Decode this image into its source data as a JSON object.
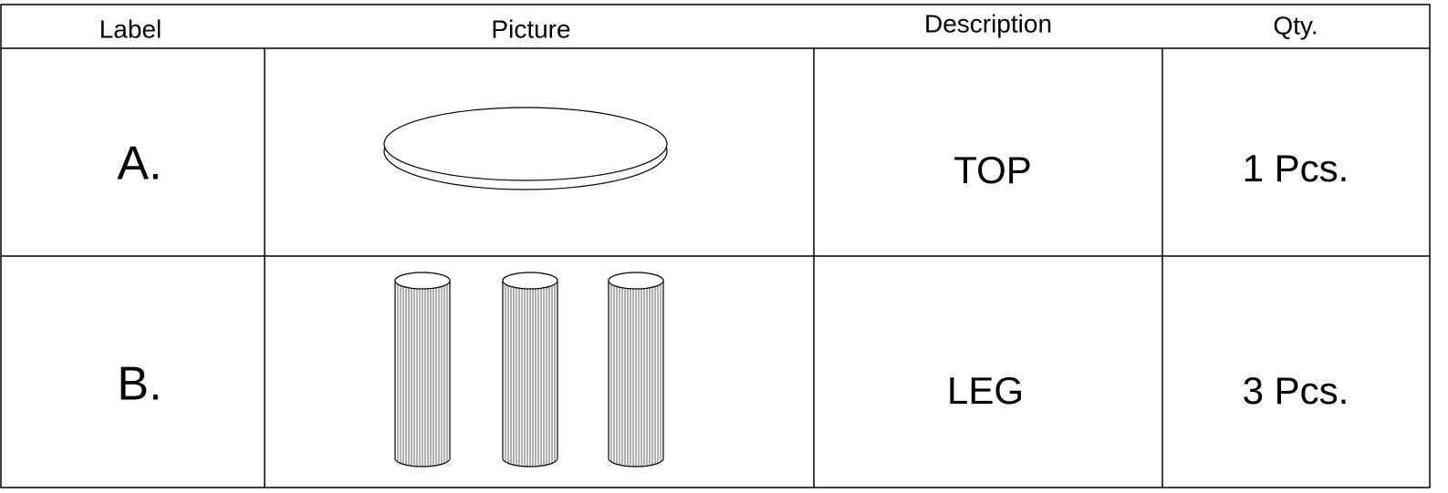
{
  "table": {
    "header": [
      "Label",
      "Picture",
      "Description",
      "Qty."
    ],
    "rows": [
      [
        "A.",
        "TOP",
        "1 Pcs."
      ],
      [
        "B.",
        "LEG",
        "3 Pcs."
      ]
    ]
  }
}
